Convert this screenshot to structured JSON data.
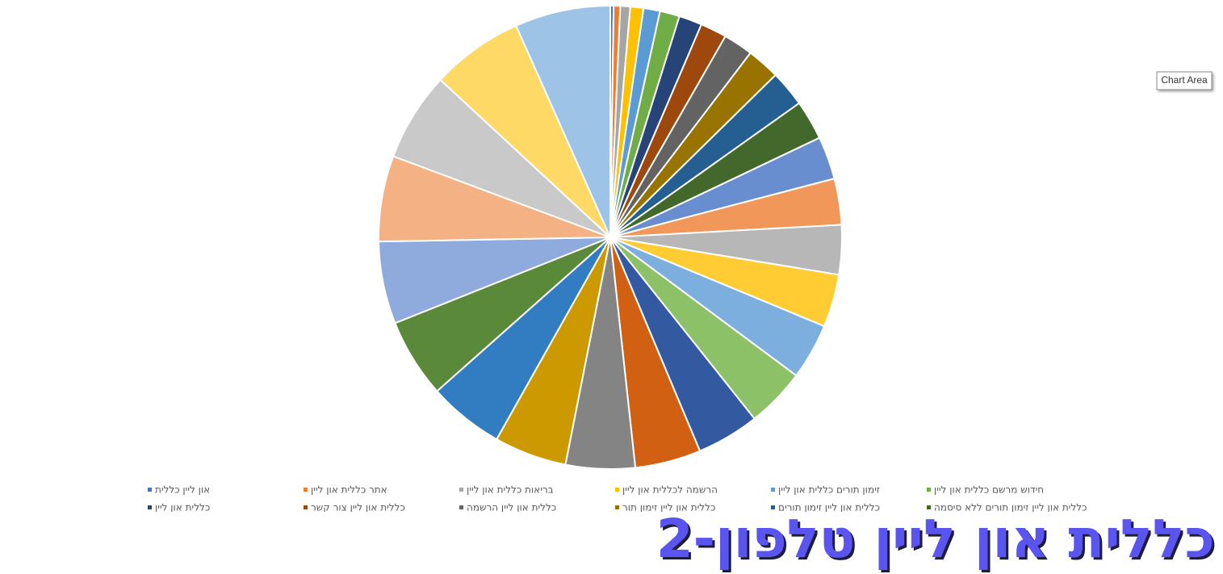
{
  "chart_data": {
    "type": "pie",
    "title": "כללית און ליין טלפון-2",
    "tooltip": "Chart Area",
    "categories": [
      "און ליין כללית",
      "אתר כללית און ליין",
      "בריאות כללית און ליין",
      "הרשמה לכללית און ליין",
      "זימון תורים כללית און ליין",
      "חידוש מרשם כללית און ליין",
      "כללית און ליין",
      "כללית און ליין צור קשר",
      "כללית און ליין הרשמה",
      "כללית און ליין זימון תור",
      "כללית און ליין זימון תורים",
      "כללית און ליין זימון תורים ללא סיסמה",
      null,
      null,
      null,
      null,
      null,
      null,
      null,
      null,
      null,
      null,
      null,
      null,
      null,
      null,
      null,
      null,
      null
    ],
    "values": [
      1,
      2,
      3,
      4,
      5,
      6,
      7,
      8,
      9,
      10,
      11,
      12,
      13,
      14,
      15,
      16,
      17,
      18,
      19,
      20,
      21,
      22,
      23,
      24,
      25,
      26,
      27,
      28,
      29
    ],
    "colors": [
      "#4472c4",
      "#ed7d31",
      "#a5a5a5",
      "#ffc000",
      "#5b9bd5",
      "#70ad47",
      "#264478",
      "#9e480e",
      "#636363",
      "#997300",
      "#255e91",
      "#43682b",
      "#698ed0",
      "#f1975a",
      "#b7b7b7",
      "#ffcd33",
      "#7cafdd",
      "#8cc168",
      "#335aa1",
      "#d26012",
      "#848484",
      "#cc9a00",
      "#327dc2",
      "#5a8a39",
      "#8faadc",
      "#f4b183",
      "#c9c9c9",
      "#ffd966",
      "#9dc3e6"
    ],
    "legend": "bottom"
  }
}
